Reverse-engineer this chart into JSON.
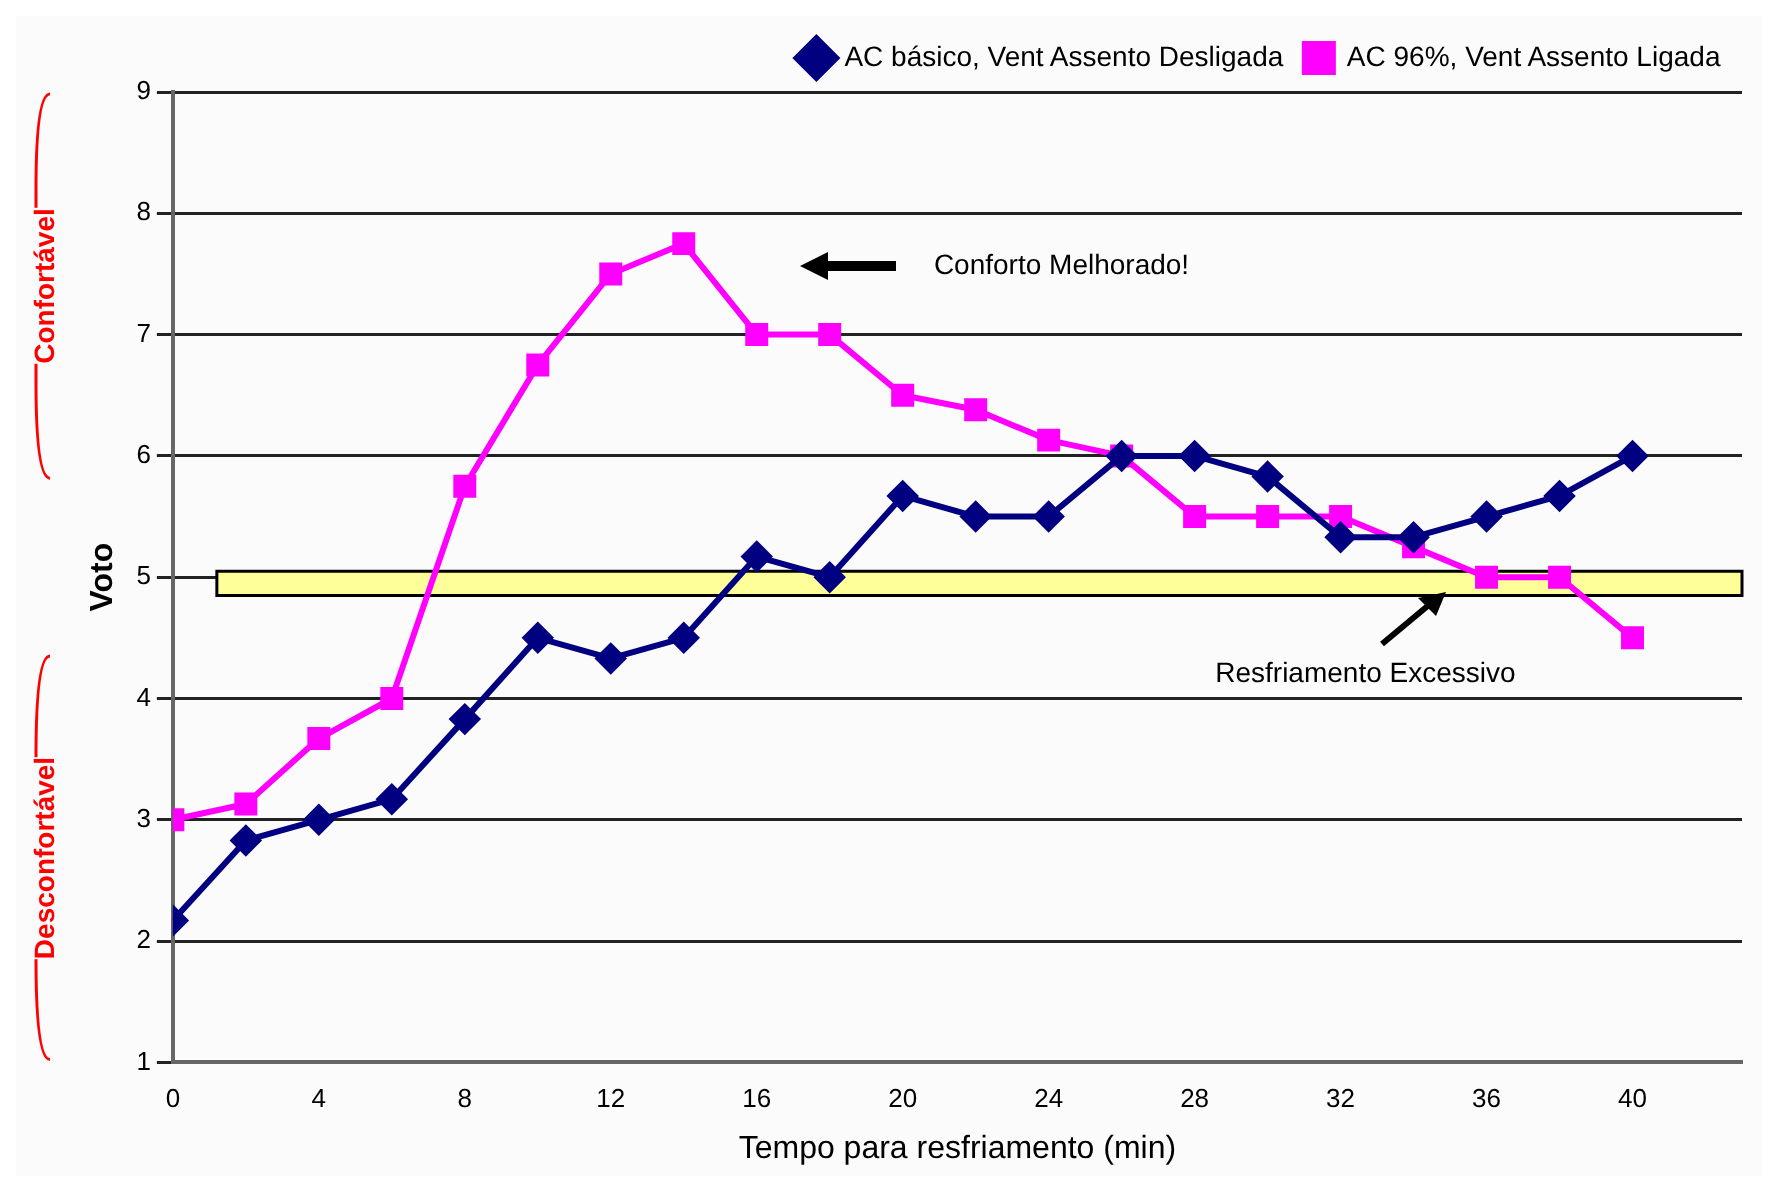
{
  "chart_data": {
    "type": "line",
    "xlabel": "Tempo para resfriamento (min)",
    "ylabel": "Voto",
    "x": [
      0,
      2,
      4,
      6,
      8,
      10,
      12,
      14,
      16,
      18,
      20,
      22,
      24,
      26,
      28,
      30,
      32,
      34,
      36,
      38,
      40
    ],
    "series": [
      {
        "name": "AC básico, Vent Assento Desligada",
        "color": "#000080",
        "marker": "diamond",
        "values": [
          2.17,
          2.83,
          3.0,
          3.17,
          3.83,
          4.5,
          4.33,
          4.5,
          5.17,
          5.0,
          5.67,
          5.5,
          5.5,
          6.0,
          6.0,
          5.83,
          5.33,
          5.33,
          5.5,
          5.67,
          6.0
        ]
      },
      {
        "name": "AC 96%, Vent Assento Ligada",
        "color": "#ff00ff",
        "marker": "square",
        "values": [
          3.0,
          3.13,
          3.67,
          4.0,
          5.75,
          6.75,
          7.5,
          7.75,
          7.0,
          7.0,
          6.5,
          6.38,
          6.13,
          6.0,
          5.5,
          5.5,
          5.5,
          5.25,
          5.0,
          5.0,
          4.5
        ]
      }
    ],
    "xlim": [
      0,
      43
    ],
    "xticks": [
      0,
      4,
      8,
      12,
      16,
      20,
      24,
      28,
      32,
      36,
      40
    ],
    "ylim": [
      1,
      9
    ],
    "yticks": [
      1,
      2,
      3,
      4,
      5,
      6,
      7,
      8,
      9
    ],
    "grid": "y",
    "legend": "top right",
    "line_style": "solid",
    "bands": [
      {
        "axis": "y",
        "from": 4.85,
        "to": 5.05,
        "color": "#ffff99"
      }
    ],
    "annotations": [
      "Conforto Melhorado!",
      "Resfriamento Excessivo",
      "Confortável",
      "Desconfortável"
    ]
  }
}
